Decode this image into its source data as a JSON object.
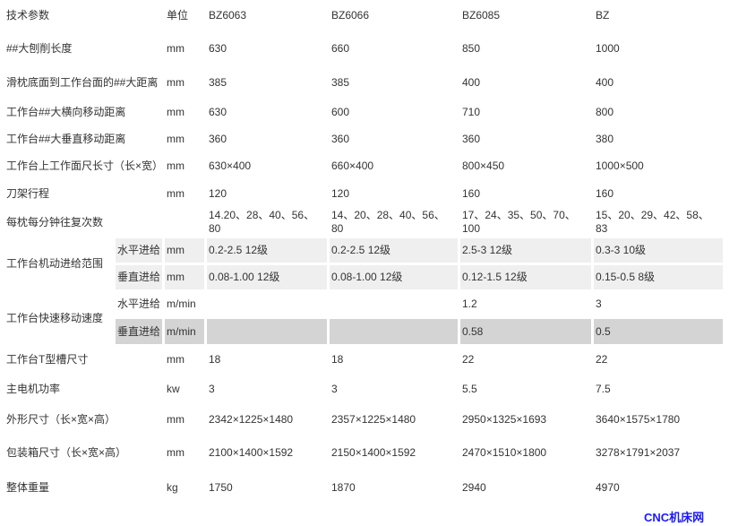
{
  "header": {
    "param": "技术参数",
    "unit": "单位",
    "models": [
      "BZ6063",
      "BZ6066",
      "BZ6085",
      "BZ"
    ]
  },
  "rows": [
    {
      "label": "##大刨削长度",
      "unit": "mm",
      "values": [
        "630",
        "660",
        "850",
        "1000"
      ]
    },
    {
      "label": "滑枕底面到工作台面的##大距离",
      "unit": "mm",
      "values": [
        "385",
        "385",
        "400",
        "400"
      ]
    },
    {
      "label": "工作台##大横向移动距离",
      "unit": "mm",
      "values": [
        "630",
        "600",
        "710",
        "800"
      ]
    },
    {
      "label": "工作台##大垂直移动距离",
      "unit": "mm",
      "values": [
        "360",
        "360",
        "360",
        "380"
      ]
    },
    {
      "label": "工作台上工作面尺长寸（长×宽）",
      "unit": "mm",
      "values": [
        "630×400",
        "660×400",
        "800×450",
        "1000×500"
      ]
    },
    {
      "label": "刀架行程",
      "unit": "mm",
      "values": [
        "120",
        "120",
        "160",
        "160"
      ]
    },
    {
      "label": "每枕每分钟往复次数",
      "unit": "",
      "values": [
        "14.20、28、40、56、80",
        "14、20、28、40、56、80",
        "17、24、35、50、70、100",
        "15、20、29、42、58、83"
      ]
    }
  ],
  "feed": {
    "label": "工作台机动进给范围",
    "sub": [
      {
        "label": "水平进给",
        "unit": "mm",
        "values": [
          "0.2-2.5 12级",
          "0.2-2.5 12级",
          "2.5-3 12级",
          "0.3-3 10级"
        ]
      },
      {
        "label": "垂直进给",
        "unit": "mm",
        "values": [
          "0.08-1.00 12级",
          "0.08-1.00 12级",
          "0.12-1.5 12级",
          "0.15-0.5 8级"
        ]
      }
    ]
  },
  "rapid": {
    "label": "工作台快速移动速度",
    "sub": [
      {
        "label": "水平进给",
        "unit": "m/min",
        "values": [
          "",
          "",
          "1.2",
          "3"
        ]
      },
      {
        "label": "垂直进给",
        "unit": "m/min",
        "values": [
          "",
          "",
          "0.58",
          "0.5"
        ]
      }
    ]
  },
  "rows2": [
    {
      "label": "工作台T型槽尺寸",
      "unit": "mm",
      "values": [
        "18",
        "18",
        "22",
        "22"
      ]
    },
    {
      "label": "主电机功率",
      "unit": "kw",
      "values": [
        "3",
        "3",
        "5.5",
        "7.5"
      ]
    },
    {
      "label": "外形尺寸（长×宽×高）",
      "unit": "mm",
      "values": [
        "2342×1225×1480",
        "2357×1225×1480",
        "2950×1325×1693",
        "3640×1575×1780"
      ]
    },
    {
      "label": "包装箱尺寸（长×宽×高）",
      "unit": "mm",
      "values": [
        "2100×1400×1592",
        "2150×1400×1592",
        "2470×1510×1800",
        "3278×1791×2037"
      ]
    },
    {
      "label": "整体重量",
      "unit": "kg",
      "values": [
        "1750",
        "1870",
        "2940",
        "4970"
      ]
    }
  ],
  "watermark": "CNC机床网",
  "colors": {
    "row_light": "#efefef",
    "row_dark": "#d4d4d4",
    "watermark": "#1a1aff"
  }
}
